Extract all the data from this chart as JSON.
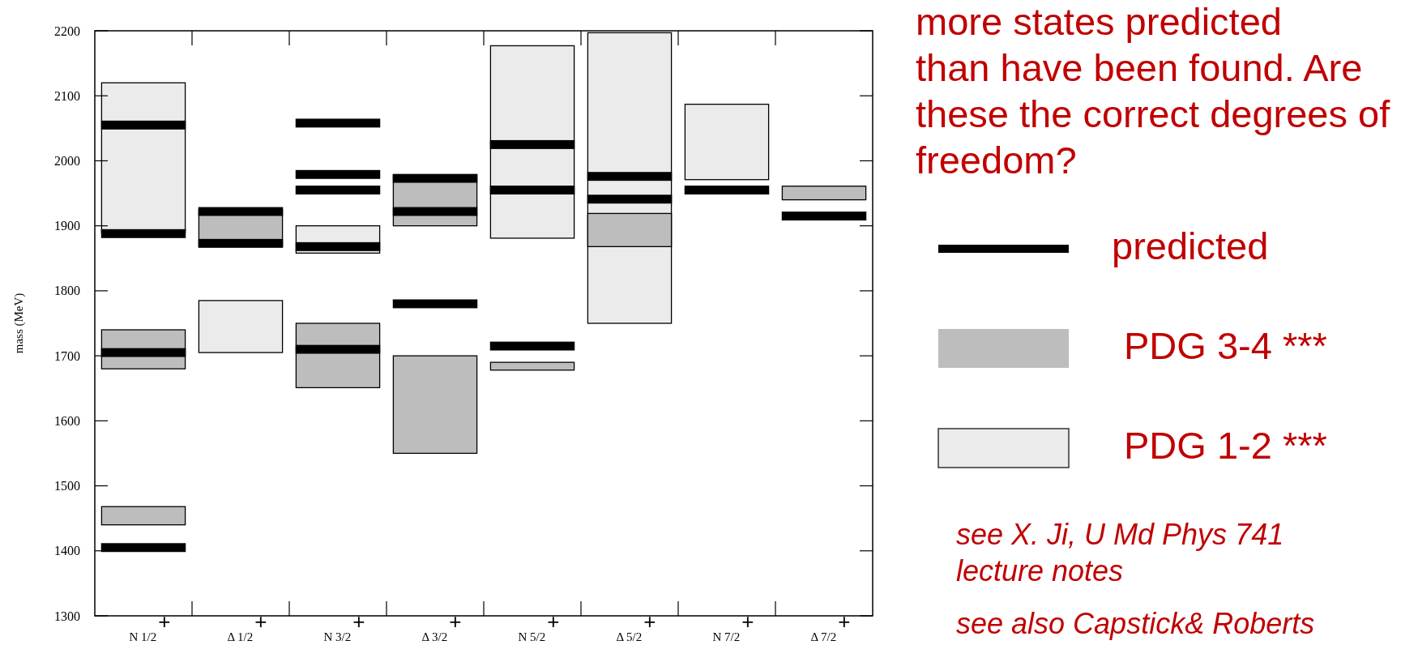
{
  "chart_data": {
    "type": "bar",
    "ylabel": "mass (MeV)",
    "categories": [
      "N 1/2$^{+}$",
      "Δ 1/2$^{+}$",
      "N 3/2$^{+}$",
      "Δ 3/2$^{+}$",
      "N 5/2$^{+}$",
      "Δ 5/2$^{+}$",
      "N 7/2$^{+}$",
      "Δ 7/2$^{+}$"
    ],
    "series": [
      {
        "name": "predicted",
        "color": "#000000",
        "base": [
          2049,
          1916,
          2052,
          1967,
          2019,
          1970,
          1949,
          1909
        ],
        "values": [
          12,
          12,
          12,
          12,
          12,
          12,
          12,
          12
        ]
      },
      {
        "color": "#000000",
        "base": [
          1882,
          1867,
          1973,
          1916,
          1949,
          1935,
          null,
          null
        ],
        "values": [
          12,
          12,
          12,
          12,
          12,
          12,
          null,
          null
        ]
      },
      {
        "color": "#000000",
        "base": [
          1699,
          null,
          1949,
          1774,
          1709,
          null,
          null,
          null
        ],
        "values": [
          12,
          null,
          12,
          12,
          12,
          null,
          null,
          null
        ]
      },
      {
        "color": "#000000",
        "base": [
          1399,
          null,
          1862,
          null,
          null,
          null,
          null,
          null
        ],
        "values": [
          12,
          null,
          12,
          null,
          null,
          null,
          null,
          null
        ]
      },
      {
        "color": "#000000",
        "base": [
          null,
          null,
          1704,
          null,
          null,
          null,
          null,
          null
        ],
        "values": [
          null,
          null,
          12,
          null,
          null,
          null,
          null,
          null
        ]
      },
      {
        "name": "PDG 3-4 ***",
        "color": "#bdbdbd",
        "base": [
          1680,
          1868,
          1651,
          1900,
          1678,
          1868,
          null,
          1940
        ],
        "values": [
          60,
          57,
          99,
          78,
          12,
          51,
          null,
          21
        ]
      },
      {
        "color": "#bdbdbd",
        "base": [
          1440,
          null,
          null,
          1550,
          null,
          null,
          null,
          null
        ],
        "values": [
          28,
          null,
          null,
          150,
          null,
          null,
          null,
          null
        ]
      },
      {
        "name": "PDG 1-2 ***",
        "color": "#ebebeb",
        "base": [
          1890,
          1705,
          1858,
          null,
          1881,
          1750,
          1971,
          null
        ],
        "values": [
          230,
          80,
          42,
          null,
          296,
          447,
          116,
          null
        ]
      }
    ],
    "ylim": [
      1300,
      2200
    ],
    "yticks": [
      1300,
      1400,
      1500,
      1600,
      1700,
      1800,
      1900,
      2000,
      2100,
      2200
    ],
    "grid": false,
    "legend": "right",
    "annotations": [
      "more states predicted\nthan have been found. Are\nthese the correct degrees of\nfreedom?",
      "see X. Ji, U Md Phys 741\nlecture notes",
      "see also Capstick& Roberts"
    ]
  }
}
